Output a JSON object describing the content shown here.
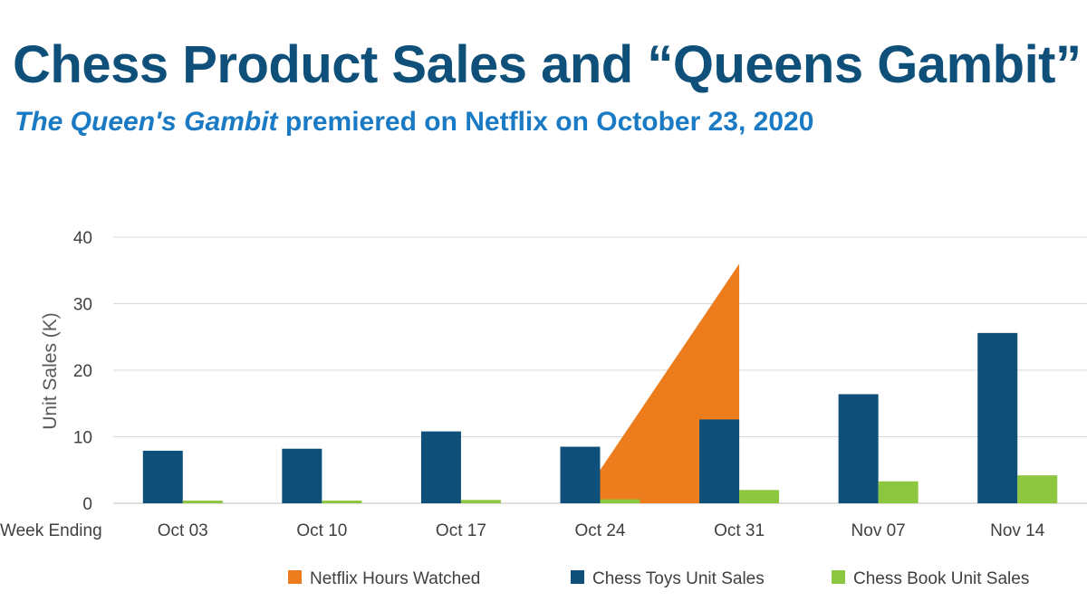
{
  "title": "Chess Product Sales and “Queens Gambit”",
  "subtitle": {
    "italic": "The Queen's Gambit",
    "rest": " premiered on Netflix on October 23, 2020"
  },
  "chart_data": {
    "type": "bar",
    "ylabel": "Unit Sales (K)",
    "xlabel": "Week Ending",
    "ylim": [
      0,
      40
    ],
    "yticks": [
      0,
      10,
      20,
      30,
      40
    ],
    "grid": true,
    "legend_position": "bottom",
    "categories": [
      "Oct 03",
      "Oct 10",
      "Oct 17",
      "Oct 24",
      "Oct 31",
      "Nov 07",
      "Nov 14"
    ],
    "series": [
      {
        "name": "Netflix Hours Watched",
        "kind": "area",
        "color": "#ed7d1c",
        "points": [
          {
            "category": "Oct 24",
            "value": 5
          },
          {
            "category": "Oct 31",
            "value": 36
          }
        ]
      },
      {
        "name": "Chess Toys Unit Sales",
        "kind": "bar",
        "color": "#0e5079",
        "values": [
          7.9,
          8.2,
          10.8,
          8.5,
          12.6,
          16.4,
          25.6
        ]
      },
      {
        "name": "Chess Book Unit Sales",
        "kind": "bar",
        "color": "#8dc63f",
        "values": [
          0.4,
          0.4,
          0.5,
          0.6,
          2.0,
          3.3,
          4.2
        ]
      }
    ]
  }
}
